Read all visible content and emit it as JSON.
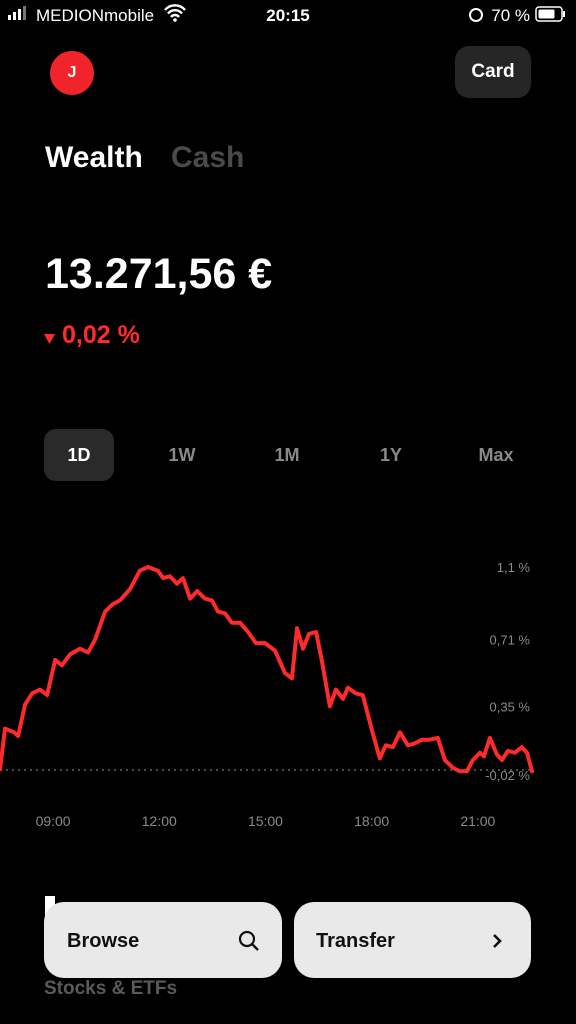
{
  "status_bar": {
    "carrier": "MEDIONmobile",
    "time": "20:15",
    "battery": "70 %"
  },
  "header": {
    "avatar": "J",
    "card_button": "Card"
  },
  "tabs": [
    "Wealth",
    "Cash"
  ],
  "balance": {
    "amount": "13.271,56 €",
    "change": "0,02 %"
  },
  "ranges": [
    "1D",
    "1W",
    "1M",
    "1Y",
    "Max"
  ],
  "chart_data": {
    "type": "line",
    "x": [
      7.5,
      7.64,
      7.9,
      8.01,
      8.21,
      8.41,
      8.63,
      8.83,
      9.06,
      9.25,
      9.48,
      9.76,
      9.99,
      10.19,
      10.47,
      10.69,
      10.89,
      11.17,
      11.45,
      11.68,
      11.96,
      12.11,
      12.3,
      12.5,
      12.67,
      12.87,
      13.07,
      13.29,
      13.49,
      13.66,
      13.86,
      14.05,
      14.28,
      14.51,
      14.73,
      14.99,
      15.27,
      15.55,
      15.75,
      15.89,
      16.06,
      16.23,
      16.43,
      16.59,
      16.82,
      16.99,
      17.19,
      17.33,
      17.55,
      17.75,
      18.01,
      18.23,
      18.4,
      18.6,
      18.8,
      19.02,
      19.22,
      19.42,
      19.64,
      19.87,
      20.07,
      20.29,
      20.49,
      20.69,
      20.86,
      21.06,
      21.17,
      21.34,
      21.54,
      21.68,
      21.85,
      22.05,
      22.24,
      22.39,
      22.53
    ],
    "series": [
      {
        "color": "#ff2b2b",
        "values": [
          0.01,
          0.23,
          0.21,
          0.19,
          0.36,
          0.42,
          0.44,
          0.41,
          0.6,
          0.57,
          0.63,
          0.66,
          0.64,
          0.71,
          0.86,
          0.9,
          0.92,
          0.98,
          1.08,
          1.1,
          1.08,
          1.04,
          1.05,
          1.01,
          1.04,
          0.93,
          0.97,
          0.93,
          0.92,
          0.86,
          0.85,
          0.8,
          0.8,
          0.75,
          0.69,
          0.69,
          0.65,
          0.53,
          0.5,
          0.77,
          0.66,
          0.74,
          0.75,
          0.6,
          0.35,
          0.44,
          0.39,
          0.45,
          0.42,
          0.41,
          0.22,
          0.07,
          0.14,
          0.13,
          0.21,
          0.14,
          0.15,
          0.17,
          0.17,
          0.18,
          0.06,
          0.02,
          0.0,
          0.0,
          0.06,
          0.1,
          0.08,
          0.18,
          0.09,
          0.06,
          0.11,
          0.1,
          0.13,
          0.1,
          0.0
        ]
      }
    ],
    "xlim": [
      7.5,
      22.53
    ],
    "xticks": [
      {
        "value": 9,
        "label": "09:00"
      },
      {
        "value": 12,
        "label": "12:00"
      },
      {
        "value": 15,
        "label": "15:00"
      },
      {
        "value": 18,
        "label": "18:00"
      },
      {
        "value": 21,
        "label": "21:00"
      }
    ],
    "ylim": [
      -0.02,
      1.1
    ],
    "yticks": [
      {
        "value": 1.1,
        "label": "1,1 %"
      },
      {
        "value": 0.71,
        "label": "0,71 %"
      },
      {
        "value": 0.35,
        "label": "0,35 %"
      },
      {
        "value": -0.02,
        "label": "-0,02 %"
      }
    ],
    "grid": false
  },
  "actions": {
    "browse": "Browse",
    "transfer": "Transfer",
    "section": "Stocks & ETFs"
  }
}
